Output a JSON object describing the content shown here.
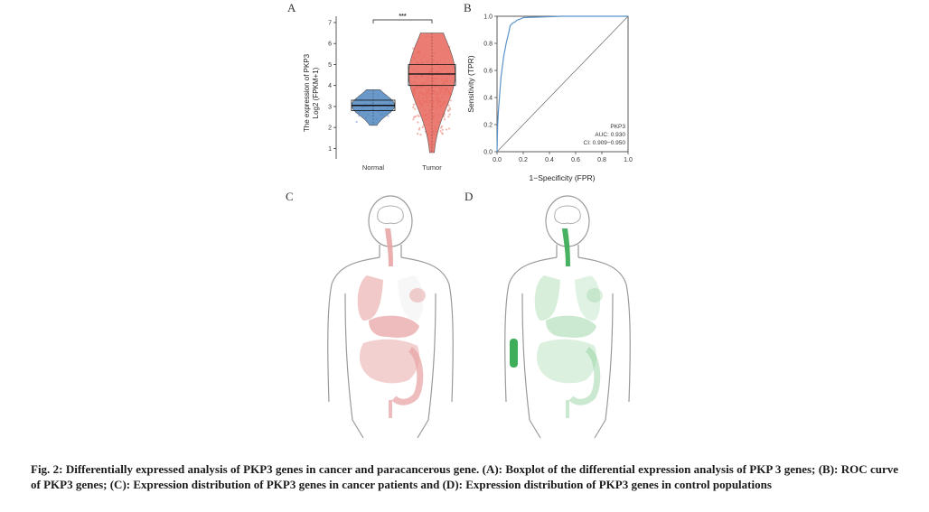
{
  "figure": {
    "panels": {
      "a": "A",
      "b": "B",
      "c": "C",
      "d": "D"
    },
    "caption": "Fig. 2: Differentially expressed analysis of PKP3 genes in cancer and paracancerous gene. (A): Boxplot of the differential expression analysis of PKP 3 genes; (B): ROC curve of PKP3 genes; (C): Expression distribution of PKP3 genes in cancer patients and (D): Expression distribution of PKP3 genes in control populations"
  },
  "chart_data": [
    {
      "type": "violin-box",
      "ylabel_line1": "The expression of PKP3",
      "ylabel_line2": "Log2 (FPKM+1)",
      "xlabel": "",
      "ylim": [
        0.5,
        7.3
      ],
      "yticks": [
        1,
        2,
        3,
        4,
        5,
        6,
        7
      ],
      "categories": [
        "Normal",
        "Tumor"
      ],
      "significance": "***",
      "colors": {
        "Normal": "#4f86c0",
        "Tumor": "#e8655a"
      },
      "groups": [
        {
          "name": "Normal",
          "min": 2.1,
          "q1": 2.8,
          "median": 3.05,
          "q3": 3.3,
          "max": 3.8
        },
        {
          "name": "Tumor",
          "min": 0.8,
          "q1": 4.0,
          "median": 4.55,
          "q3": 5.0,
          "max": 6.5
        }
      ]
    },
    {
      "type": "line",
      "xlabel": "1−Specificity (FPR)",
      "ylabel": "Sensitivity (TPR)",
      "xlim": [
        0,
        1
      ],
      "ylim": [
        0,
        1
      ],
      "xticks": [
        "0.0",
        "0.2",
        "0.4",
        "0.6",
        "0.8",
        "1.0"
      ],
      "yticks": [
        "0.0",
        "0.2",
        "0.4",
        "0.6",
        "0.8",
        "1.0"
      ],
      "series_color": "#5b93c9",
      "fpr": [
        0,
        0.005,
        0.01,
        0.02,
        0.03,
        0.05,
        0.07,
        0.09,
        0.1,
        0.12,
        0.14,
        0.15,
        0.18,
        0.2,
        0.5,
        1.0
      ],
      "tpr": [
        0,
        0.2,
        0.3,
        0.42,
        0.55,
        0.7,
        0.8,
        0.88,
        0.93,
        0.95,
        0.96,
        0.97,
        0.98,
        0.99,
        1.0,
        1.0
      ],
      "annotations": [
        "PKP3",
        "AUC: 0.930",
        "CI: 0.909−0.950"
      ]
    }
  ],
  "body_maps": {
    "cancer_color": "#e8a5a5",
    "control_color": "#8ccf98",
    "control_strong": "#3fae5a"
  }
}
